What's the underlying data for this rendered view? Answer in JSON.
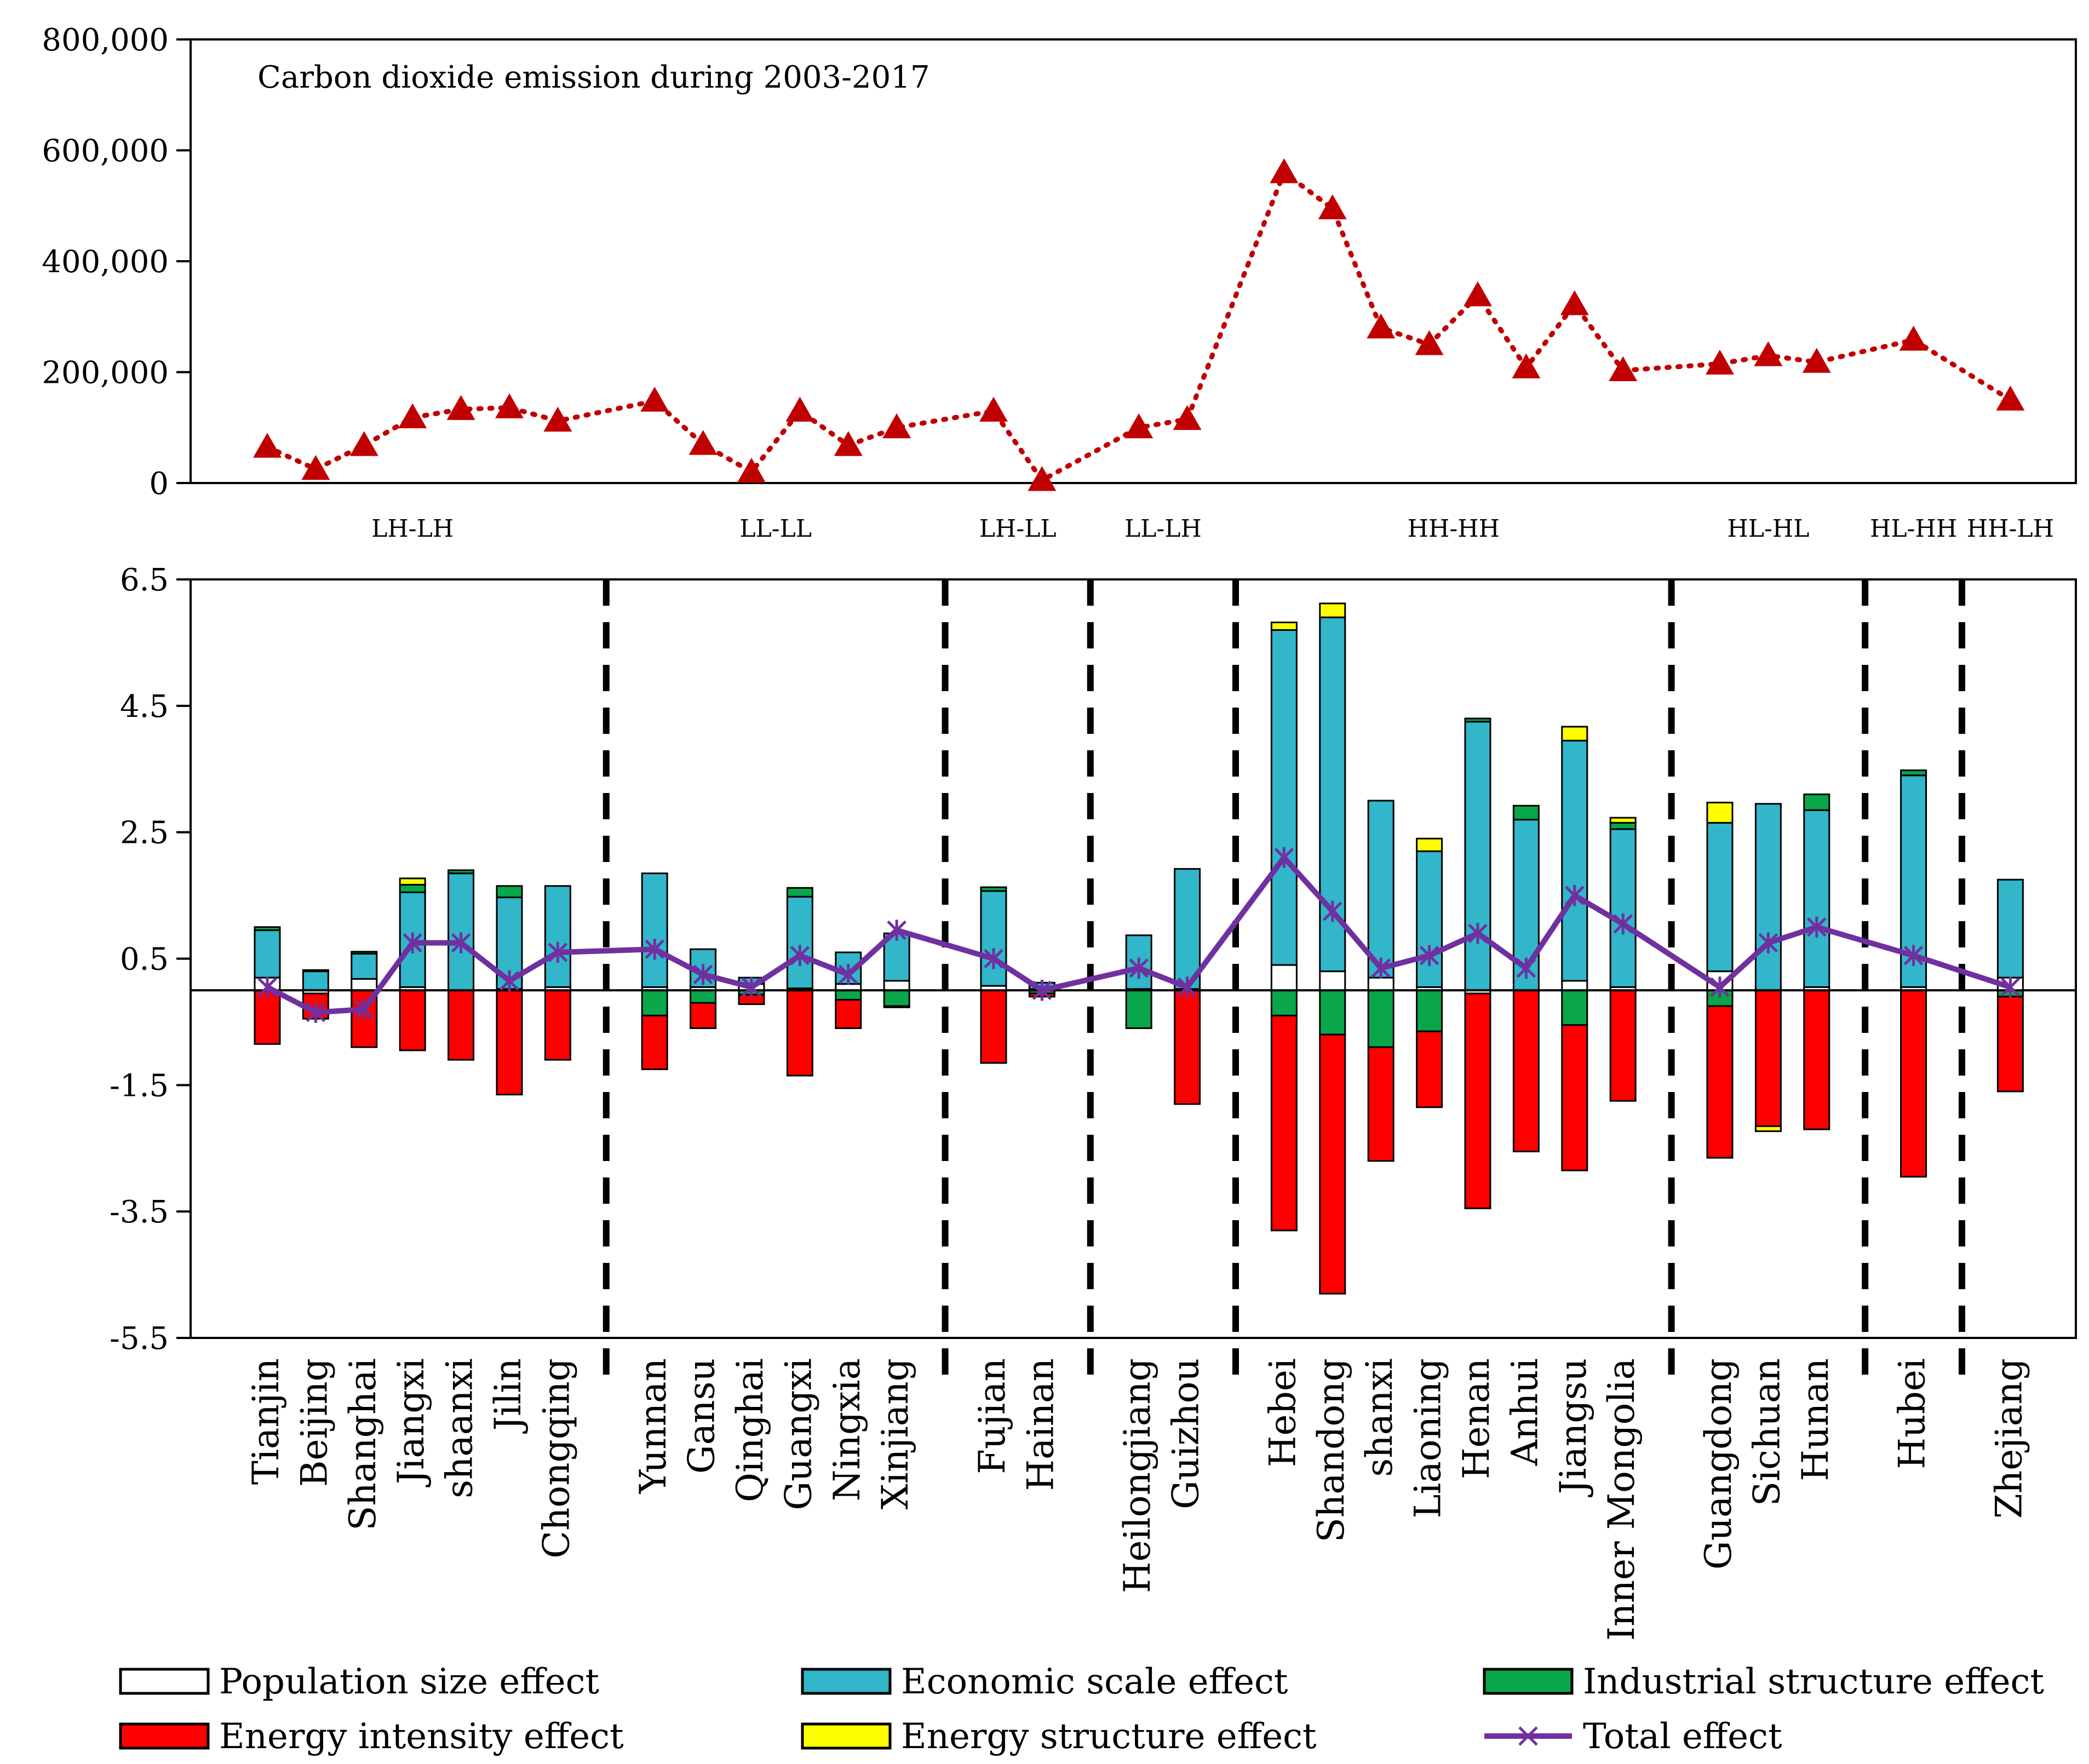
{
  "chart_data": [
    {
      "type": "line",
      "title": "Carbon dioxide emission during 2003-2017",
      "xlabel": "",
      "ylabel": "",
      "ylim": [
        0,
        800000
      ],
      "yticks": [
        "0",
        "200,000",
        "400,000",
        "600,000",
        "800,000"
      ],
      "series": [
        {
          "name": "Carbon dioxide emission during 2003-2017",
          "color": "#c00000",
          "values": [
            65000,
            25000,
            68000,
            118000,
            133000,
            136000,
            112000,
            148000,
            70000,
            20000,
            130000,
            68000,
            100000,
            130000,
            5000,
            100000,
            115000,
            560000,
            495000,
            280000,
            250000,
            338000,
            208000,
            322000,
            203000,
            215000,
            230000,
            218000,
            258000,
            150000
          ]
        }
      ]
    },
    {
      "type": "bar",
      "stacked": true,
      "categories": [
        "Tianjin",
        "Beijing",
        "Shanghai",
        "Jiangxi",
        "shaanxi",
        "Jilin",
        "Chongqing",
        "Yunnan",
        "Gansu",
        "Qinghai",
        "Guangxi",
        "Ningxia",
        "Xinjiang",
        "Fujian",
        "Hainan",
        "Heilongjiang",
        "Guizhou",
        "Hebei",
        "Shandong",
        "shanxi",
        "Liaoning",
        "Henan",
        "Anhui",
        "Jiangsu",
        "Inner Mongolia",
        "Guangdong",
        "Sichuan",
        "Hunan",
        "Hubei",
        "Zhejiang"
      ],
      "groups": [
        {
          "label": "LH-LH",
          "count": 7
        },
        {
          "label": "LL-LL",
          "count": 6
        },
        {
          "label": "LH-LL",
          "count": 2
        },
        {
          "label": "LL-LH",
          "count": 2
        },
        {
          "label": "HH-HH",
          "count": 8
        },
        {
          "label": "HL-HL",
          "count": 3
        },
        {
          "label": "HL-HH",
          "count": 1
        },
        {
          "label": "HH-LH",
          "count": 1
        }
      ],
      "ylim": [
        -5.5,
        6.5
      ],
      "yticks": [
        "-5.5",
        "-3.5",
        "-1.5",
        "0.5",
        "2.5",
        "4.5",
        "6.5"
      ],
      "series": [
        {
          "name": "Population size effect",
          "color": "#ffffff",
          "values": [
            0.2,
            -0.05,
            0.18,
            0.05,
            0.0,
            0.02,
            0.05,
            0.05,
            0.05,
            0.1,
            0.03,
            0.1,
            0.15,
            0.07,
            0.02,
            0.02,
            0.02,
            0.4,
            0.3,
            0.2,
            0.05,
            -0.05,
            0.0,
            0.15,
            0.05,
            0.3,
            0.0,
            0.05,
            0.05,
            0.2
          ]
        },
        {
          "name": "Economic scale effect",
          "color": "#31b6ca",
          "values": [
            0.75,
            0.3,
            0.4,
            1.5,
            1.85,
            1.45,
            1.6,
            1.8,
            0.6,
            0.1,
            1.45,
            0.5,
            0.75,
            1.5,
            0.1,
            0.85,
            1.9,
            5.3,
            5.6,
            2.8,
            2.15,
            4.25,
            2.7,
            3.8,
            2.5,
            2.35,
            2.95,
            2.8,
            3.35,
            1.55
          ]
        },
        {
          "name": "Industrial structure effect",
          "color": "#0aa64a",
          "values": [
            0.05,
            0.02,
            0.03,
            0.12,
            0.05,
            0.18,
            0.0,
            -0.4,
            -0.2,
            -0.07,
            0.14,
            -0.15,
            -0.25,
            0.06,
            -0.05,
            -0.6,
            0.0,
            -0.4,
            -0.7,
            -0.9,
            -0.65,
            0.05,
            0.22,
            -0.55,
            0.1,
            -0.25,
            0.0,
            0.25,
            0.08,
            -0.1
          ]
        },
        {
          "name": "Energy intensity effect",
          "color": "#ff0000",
          "values": [
            -0.85,
            -0.4,
            -0.9,
            -0.95,
            -1.1,
            -1.65,
            -1.1,
            -0.85,
            -0.4,
            -0.15,
            -1.35,
            -0.45,
            -0.02,
            -1.15,
            -0.05,
            0.0,
            -1.8,
            -3.4,
            -4.1,
            -1.8,
            -1.2,
            -3.4,
            -2.55,
            -2.3,
            -1.75,
            -2.4,
            -2.15,
            -2.2,
            -2.95,
            -1.5
          ]
        },
        {
          "name": "Energy structure effect",
          "color": "#ffff00",
          "values": [
            0.0,
            0.0,
            0.0,
            0.1,
            0.0,
            0.0,
            0.0,
            0.0,
            0.0,
            0.0,
            0.0,
            0.0,
            0.0,
            0.0,
            0.0,
            0.0,
            0.0,
            0.12,
            0.22,
            0.0,
            0.2,
            0.0,
            0.0,
            0.22,
            0.08,
            0.32,
            -0.08,
            0.0,
            0.0,
            0.0
          ]
        }
      ],
      "total": {
        "name": "Total effect",
        "color": "#7030a0",
        "values": [
          0.05,
          -0.35,
          -0.3,
          0.75,
          0.75,
          0.15,
          0.6,
          0.65,
          0.25,
          0.05,
          0.55,
          0.25,
          0.95,
          0.5,
          0.0,
          0.35,
          0.05,
          2.1,
          1.25,
          0.35,
          0.55,
          0.9,
          0.35,
          1.5,
          1.05,
          0.05,
          0.75,
          1.0,
          0.55,
          0.05
        ]
      },
      "legend_position": "bottom"
    }
  ]
}
